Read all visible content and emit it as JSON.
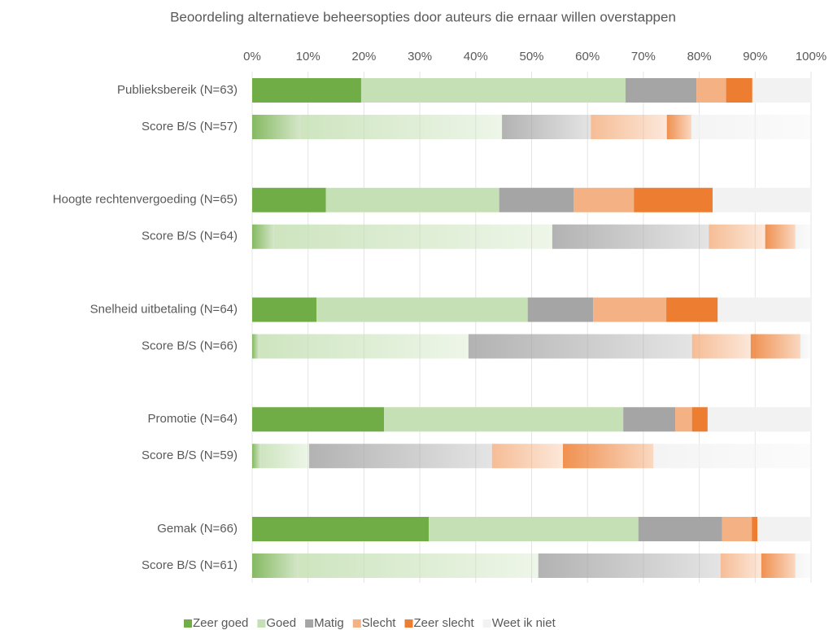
{
  "chart_data": {
    "type": "stacked-barh",
    "title": "Beoordeling alternatieve beheersopties door auteurs die ernaar willen overstappen",
    "categories": [
      "Publieksbereik (N=63)",
      "Score B/S (N=57)",
      "Hoogte rechtenvergoeding (N=65)",
      "Score B/S (N=64)",
      "Snelheid uitbetaling (N=64)",
      "Score B/S (N=66)",
      "Promotie (N=64)",
      "Score B/S (N=59)",
      "Gemak (N=66)",
      "Score B/S (N=61)"
    ],
    "series": [
      {
        "name": "Zeer goed",
        "color": "#70ad47",
        "values": [
          19.5,
          8.6,
          13.2,
          3.9,
          11.5,
          1.2,
          23.6,
          1.5,
          31.6,
          8.3
        ]
      },
      {
        "name": "Goed",
        "color": "#c5e0b4",
        "values": [
          47.3,
          36.1,
          31.0,
          49.8,
          37.8,
          37.5,
          42.8,
          8.7,
          37.5,
          42.9
        ]
      },
      {
        "name": "Matig",
        "color": "#a5a5a5",
        "values": [
          12.7,
          15.9,
          13.3,
          28.0,
          11.7,
          40.0,
          9.3,
          32.7,
          15.0,
          32.6
        ]
      },
      {
        "name": "Slecht",
        "color": "#f4b183",
        "values": [
          5.3,
          13.6,
          10.8,
          10.1,
          13.1,
          10.5,
          3.0,
          12.7,
          5.3,
          7.3
        ]
      },
      {
        "name": "Zeer slecht",
        "color": "#ed7d31",
        "values": [
          4.7,
          4.4,
          14.1,
          5.4,
          9.2,
          8.9,
          2.8,
          16.2,
          1.0,
          6.1
        ]
      },
      {
        "name": "Weet ik niet",
        "color": "#f2f2f2",
        "values": [
          10.5,
          21.4,
          17.6,
          2.8,
          16.7,
          1.9,
          18.5,
          28.2,
          9.6,
          2.8
        ]
      }
    ],
    "xlim": [
      0,
      100
    ],
    "xticks": [
      {
        "value": 0,
        "label": "0%"
      },
      {
        "value": 10,
        "label": "10%"
      },
      {
        "value": 20,
        "label": "20%"
      },
      {
        "value": 30,
        "label": "30%"
      },
      {
        "value": 40,
        "label": "40%"
      },
      {
        "value": 50,
        "label": "50%"
      },
      {
        "value": 60,
        "label": "60%"
      },
      {
        "value": 70,
        "label": "70%"
      },
      {
        "value": 80,
        "label": "80%"
      },
      {
        "value": 90,
        "label": "90%"
      },
      {
        "value": 100,
        "label": "100%"
      }
    ],
    "grid": true,
    "legend": "bottom"
  }
}
